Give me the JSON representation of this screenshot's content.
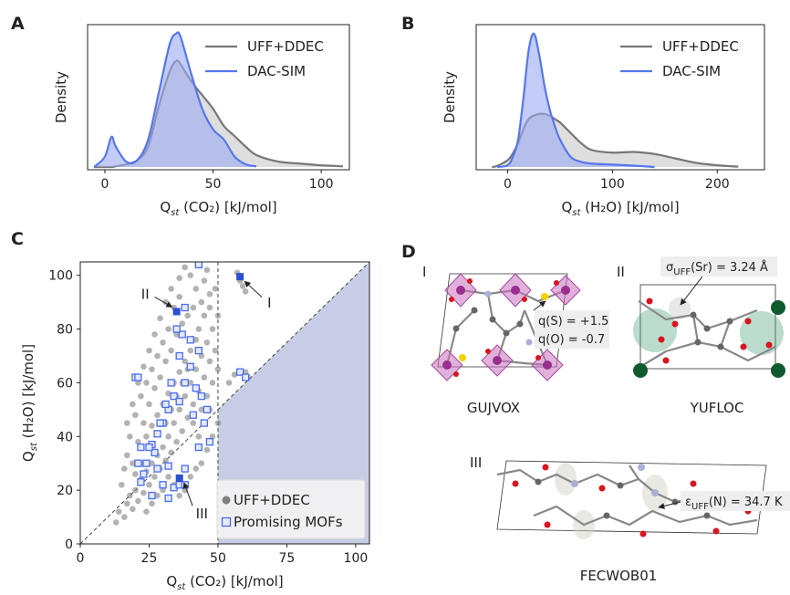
{
  "chart_data": [
    {
      "type": "kde",
      "label": "A",
      "ylabel": "Density",
      "xlabel": {
        "symbol": "Q",
        "subscript": "st",
        "text": " (CO₂) [kJ/mol]"
      },
      "xlim": [
        -8,
        113
      ],
      "ylim": [
        -0.0008,
        0.0416
      ],
      "xticks": [
        0,
        50,
        100
      ],
      "legend": "upper right",
      "x": [
        -5,
        0,
        3,
        5,
        10,
        15,
        20,
        25,
        30,
        33,
        35,
        40,
        45,
        50,
        55,
        60,
        65,
        70,
        80,
        90,
        100,
        110
      ],
      "series": [
        {
          "name": "UFF+DDEC",
          "color": "#777777",
          "fill": "#c8c8c8",
          "values": [
            0,
            0,
            0,
            0.0002,
            0.0008,
            0.002,
            0.006,
            0.018,
            0.028,
            0.031,
            0.03,
            0.025,
            0.021,
            0.017,
            0.012,
            0.009,
            0.006,
            0.0035,
            0.0016,
            0.001,
            0.0005,
            0.0002
          ]
        },
        {
          "name": "DAC-SIM",
          "color": "#5577ee",
          "fill": "#9aaaf0",
          "values": [
            0,
            0.003,
            0.0088,
            0.006,
            0.0015,
            0.002,
            0.008,
            0.022,
            0.036,
            0.039,
            0.038,
            0.027,
            0.017,
            0.011,
            0.008,
            0.003,
            0.0008,
            0.0002,
            null,
            null,
            null,
            null
          ]
        }
      ]
    },
    {
      "type": "kde",
      "label": "B",
      "ylabel": "Density",
      "xlabel": {
        "symbol": "Q",
        "subscript": "st",
        "text": " (H₂O) [kJ/mol]"
      },
      "xlim": [
        -30,
        245
      ],
      "ylim": [
        -0.0008,
        0.0416
      ],
      "xticks": [
        0,
        100,
        200
      ],
      "legend": "upper right",
      "x": [
        -15,
        -10,
        0,
        5,
        10,
        15,
        20,
        25,
        30,
        35,
        40,
        45,
        50,
        60,
        70,
        80,
        100,
        120,
        140,
        160,
        180,
        200,
        220
      ],
      "series": [
        {
          "name": "UFF+DDEC",
          "color": "#777777",
          "fill": "#c8c8c8",
          "values": [
            0,
            0.0003,
            0.002,
            0.004,
            0.007,
            0.011,
            0.014,
            0.015,
            0.0155,
            0.0155,
            0.015,
            0.014,
            0.013,
            0.01,
            0.007,
            0.005,
            0.0042,
            0.0044,
            0.0038,
            0.0025,
            0.0012,
            0.0005,
            0.0001
          ]
        },
        {
          "name": "DAC-SIM",
          "color": "#5577ee",
          "fill": "#9aaaf0",
          "values": [
            null,
            0,
            0.0005,
            0.003,
            0.008,
            0.02,
            0.034,
            0.039,
            0.033,
            0.024,
            0.017,
            0.012,
            0.008,
            0.003,
            0.0015,
            0.001,
            0.0007,
            0.0004,
            0,
            null,
            null,
            null,
            null
          ]
        }
      ]
    },
    {
      "type": "scatter",
      "label": "C",
      "xlabel": {
        "symbol": "Q",
        "subscript": "st",
        "text": " (CO₂) [kJ/mol]"
      },
      "ylabel": {
        "symbol": "Q",
        "subscript": "st",
        "text": " (H₂O) [kJ/mol]"
      },
      "xlim": [
        0,
        105
      ],
      "ylim": [
        0,
        105
      ],
      "xticks": [
        0,
        25,
        50,
        75,
        100
      ],
      "yticks": [
        0,
        20,
        40,
        60,
        80,
        100
      ],
      "diagonal": true,
      "x_threshold": 50,
      "legend": "lower right",
      "series": [
        {
          "name": "UFF+DDEC",
          "color": "#808080",
          "marker": "circle",
          "x": [
            13,
            14,
            16,
            17,
            18,
            19,
            20,
            21,
            22,
            23,
            24,
            25,
            26,
            27,
            28,
            29,
            30,
            31,
            32,
            33,
            34,
            35,
            36,
            37,
            38,
            39,
            40,
            41,
            42,
            43,
            44,
            45,
            46,
            47,
            48,
            49,
            44,
            42,
            40,
            38,
            45,
            47,
            50,
            49,
            36,
            34,
            32,
            30,
            28,
            26,
            24,
            22,
            20,
            18,
            17,
            16,
            15,
            19,
            21,
            23,
            25,
            27,
            29,
            31,
            33,
            35,
            37,
            39,
            41,
            43,
            45,
            47,
            46,
            43,
            36,
            33,
            31,
            29,
            27,
            25,
            23,
            21,
            19,
            17,
            24,
            26,
            28,
            30,
            32,
            34,
            36,
            38,
            40,
            42,
            44,
            46,
            48,
            50,
            50,
            48,
            46,
            44,
            42,
            40,
            38,
            36,
            34,
            32,
            30,
            28,
            26,
            24,
            22,
            20,
            35,
            37,
            39,
            41,
            43,
            45,
            47,
            31,
            33,
            58,
            59,
            60,
            57,
            56,
            60,
            54,
            61
          ],
          "values": [
            8,
            12,
            10,
            15,
            18,
            13,
            20,
            16,
            24,
            19,
            27,
            22,
            30,
            25,
            33,
            28,
            36,
            31,
            40,
            34,
            45,
            38,
            50,
            42,
            55,
            47,
            60,
            52,
            65,
            57,
            70,
            62,
            75,
            68,
            80,
            72,
            90,
            95,
            100,
            103,
            98,
            88,
            85,
            95,
            92,
            88,
            80,
            75,
            70,
            65,
            60,
            55,
            48,
            40,
            33,
            28,
            22,
            30,
            38,
            45,
            52,
            58,
            62,
            68,
            72,
            78,
            82,
            85,
            88,
            80,
            85,
            93,
            102,
            104,
            99,
            95,
            90,
            84,
            78,
            72,
            66,
            60,
            52,
            45,
            40,
            44,
            48,
            52,
            56,
            60,
            64,
            68,
            72,
            76,
            50,
            55,
            60,
            65,
            45,
            40,
            35,
            30,
            28,
            25,
            20,
            18,
            22,
            25,
            20,
            18,
            15,
            12,
            30,
            26,
            55,
            60,
            65,
            45,
            40,
            45,
            50,
            45,
            50,
            98,
            96,
            94,
            101,
            63,
            64,
            60,
            62
          ]
        },
        {
          "name": "Promising MOFs",
          "color": "#4a6cf0",
          "marker": "square",
          "x": [
            22,
            24,
            26,
            28,
            30,
            32,
            34,
            36,
            38,
            40,
            42,
            44,
            46,
            43,
            40,
            37,
            35,
            38,
            36,
            33,
            31,
            29,
            27,
            25,
            23,
            30,
            32,
            34,
            36,
            38,
            26,
            21,
            28,
            43,
            45,
            47,
            41,
            58,
            60,
            38,
            43,
            20,
            21,
            22,
            32
          ],
          "values": [
            23,
            30,
            37,
            41,
            45,
            50,
            55,
            53,
            60,
            66,
            58,
            55,
            50,
            72,
            76,
            78,
            80,
            88,
            70,
            60,
            52,
            45,
            34,
            36,
            26,
            22,
            17,
            21,
            22,
            28,
            18,
            30,
            28,
            36,
            45,
            38,
            48,
            64,
            62,
            22,
            104,
            62,
            62,
            36,
            29
          ]
        }
      ],
      "highlights": {
        "labels": [
          "I",
          "II",
          "III"
        ],
        "color": "#2d4fd0",
        "x": [
          58,
          35,
          36
        ],
        "values": [
          99.5,
          86.5,
          24.5
        ]
      }
    }
  ],
  "panel_d": {
    "label": "D",
    "structures": [
      {
        "numeral": "I",
        "name": "GUJVOX",
        "annotations": [
          "q(S) = +1.5",
          "q(O) = -0.7"
        ]
      },
      {
        "numeral": "II",
        "name": "YUFLOC",
        "annotation": {
          "symbol": "σ",
          "subscript": "UFF",
          "text": "(Sr) = 3.24 Å"
        }
      },
      {
        "numeral": "III",
        "name": "FECWOB01",
        "annotation": {
          "symbol": "ε",
          "subscript": "UFF",
          "text": "(N) = 34.7 K"
        }
      }
    ]
  }
}
